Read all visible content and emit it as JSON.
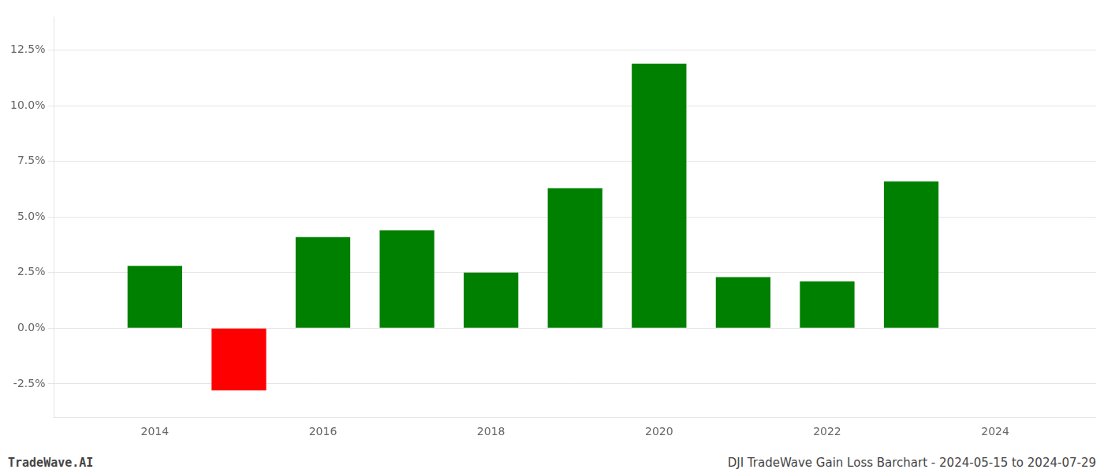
{
  "chart_data": {
    "type": "bar",
    "title": "DJI TradeWave Gain Loss Barchart - 2024-05-15 to 2024-07-29",
    "annotations": [
      "TradeWave.AI"
    ],
    "x": [
      2014,
      2015,
      2016,
      2017,
      2018,
      2019,
      2020,
      2021,
      2022,
      2023
    ],
    "values": [
      2.8,
      -2.8,
      4.1,
      4.4,
      2.5,
      6.3,
      11.9,
      2.3,
      2.1,
      6.6
    ],
    "colors": [
      "#008000",
      "#ff0000",
      "#008000",
      "#008000",
      "#008000",
      "#008000",
      "#008000",
      "#008000",
      "#008000",
      "#008000"
    ],
    "xlim": [
      2012.8,
      2025.2
    ],
    "xticks": [
      2014,
      2016,
      2018,
      2020,
      2022,
      2024
    ],
    "ylim": [
      -4.0,
      14.0
    ],
    "yticks": [
      {
        "value": -2.5,
        "label": "-2.5%"
      },
      {
        "value": 0.0,
        "label": "0.0%"
      },
      {
        "value": 2.5,
        "label": "2.5%"
      },
      {
        "value": 5.0,
        "label": "5.0%"
      },
      {
        "value": 7.5,
        "label": "7.5%"
      },
      {
        "value": 10.0,
        "label": "10.0%"
      },
      {
        "value": 12.5,
        "label": "12.5%"
      }
    ],
    "grid": "y",
    "legend": false
  }
}
